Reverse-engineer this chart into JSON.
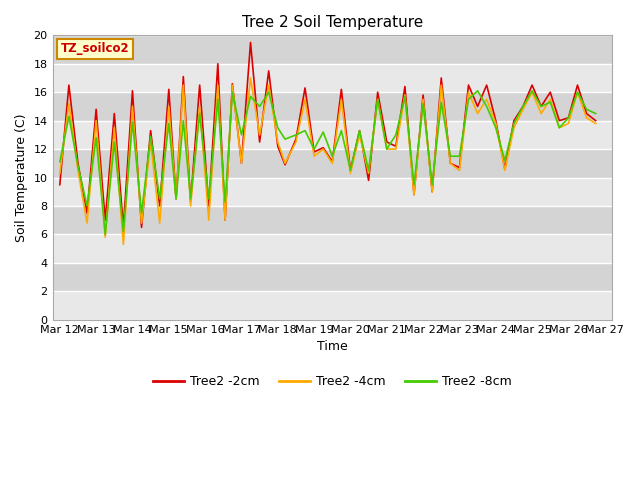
{
  "title": "Tree 2 Soil Temperature",
  "xlabel": "Time",
  "ylabel": "Soil Temperature (C)",
  "legend_label": "TZ_soilco2",
  "ylim": [
    0,
    20
  ],
  "yticks": [
    0,
    2,
    4,
    6,
    8,
    10,
    12,
    14,
    16,
    18,
    20
  ],
  "band_colors": [
    "#e8e8e8",
    "#d8d8d8"
  ],
  "series": {
    "Tree2 -2cm": {
      "color": "#dd0000",
      "x": [
        0,
        0.25,
        0.5,
        0.75,
        1.0,
        1.25,
        1.5,
        1.75,
        2.0,
        2.25,
        2.5,
        2.75,
        3.0,
        3.2,
        3.4,
        3.6,
        3.85,
        4.1,
        4.35,
        4.55,
        4.75,
        5.0,
        5.25,
        5.5,
        5.75,
        6.0,
        6.2,
        6.5,
        6.75,
        7.0,
        7.25,
        7.5,
        7.75,
        8.0,
        8.25,
        8.5,
        8.75,
        9.0,
        9.25,
        9.5,
        9.75,
        10.0,
        10.25,
        10.5,
        10.75,
        11.0,
        11.25,
        11.5,
        11.75,
        12.0,
        12.25,
        12.5,
        12.75,
        13.0,
        13.25,
        13.5,
        13.75,
        14.0,
        14.25,
        14.5,
        14.75
      ],
      "y": [
        9.5,
        16.5,
        11.0,
        7.5,
        14.8,
        7.0,
        14.5,
        6.5,
        16.1,
        6.5,
        13.3,
        8.0,
        16.2,
        8.5,
        17.1,
        8.3,
        16.5,
        8.0,
        18.0,
        7.0,
        16.6,
        11.0,
        19.5,
        12.5,
        17.5,
        12.2,
        10.9,
        12.7,
        16.3,
        11.8,
        12.1,
        11.1,
        16.2,
        10.5,
        13.3,
        9.8,
        16.0,
        12.5,
        12.2,
        16.4,
        8.8,
        15.8,
        9.0,
        17.0,
        11.0,
        10.7,
        16.5,
        15.0,
        16.5,
        14.0,
        10.6,
        14.0,
        15.0,
        16.5,
        15.0,
        16.0,
        14.0,
        14.2,
        16.5,
        14.5,
        14.0
      ]
    },
    "Tree2 -4cm": {
      "color": "#ffaa00",
      "x": [
        0,
        0.25,
        0.5,
        0.75,
        1.0,
        1.25,
        1.5,
        1.75,
        2.0,
        2.25,
        2.5,
        2.75,
        3.0,
        3.2,
        3.4,
        3.6,
        3.85,
        4.1,
        4.35,
        4.55,
        4.75,
        5.0,
        5.25,
        5.5,
        5.75,
        6.0,
        6.2,
        6.5,
        6.75,
        7.0,
        7.25,
        7.5,
        7.75,
        8.0,
        8.25,
        8.5,
        8.75,
        9.0,
        9.25,
        9.5,
        9.75,
        10.0,
        10.25,
        10.5,
        10.75,
        11.0,
        11.25,
        11.5,
        11.75,
        12.0,
        12.25,
        12.5,
        12.75,
        13.0,
        13.25,
        13.5,
        13.75,
        14.0,
        14.25,
        14.5,
        14.75
      ],
      "y": [
        10.3,
        15.2,
        10.5,
        6.8,
        14.0,
        5.8,
        13.5,
        5.3,
        15.0,
        6.8,
        12.5,
        6.8,
        15.0,
        8.5,
        16.5,
        8.0,
        15.0,
        7.0,
        16.5,
        7.0,
        16.5,
        11.0,
        17.0,
        13.0,
        16.5,
        12.5,
        11.0,
        12.5,
        15.5,
        11.5,
        12.0,
        11.0,
        15.5,
        10.3,
        13.0,
        10.3,
        15.5,
        12.0,
        12.0,
        15.8,
        8.8,
        15.5,
        9.0,
        16.5,
        11.0,
        10.5,
        16.0,
        14.5,
        15.5,
        13.8,
        10.5,
        13.5,
        14.8,
        16.0,
        14.5,
        15.5,
        13.5,
        13.8,
        16.0,
        14.2,
        13.8
      ]
    },
    "Tree2 -8cm": {
      "color": "#44cc00",
      "x": [
        0,
        0.25,
        0.5,
        0.75,
        1.0,
        1.25,
        1.5,
        1.75,
        2.0,
        2.25,
        2.5,
        2.75,
        3.0,
        3.2,
        3.4,
        3.6,
        3.85,
        4.1,
        4.35,
        4.55,
        4.75,
        5.0,
        5.25,
        5.5,
        5.75,
        6.0,
        6.2,
        6.5,
        6.75,
        7.0,
        7.25,
        7.5,
        7.75,
        8.0,
        8.25,
        8.5,
        8.75,
        9.0,
        9.25,
        9.5,
        9.75,
        10.0,
        10.25,
        10.5,
        10.75,
        11.0,
        11.25,
        11.5,
        11.75,
        12.0,
        12.25,
        12.5,
        12.75,
        13.0,
        13.25,
        13.5,
        13.75,
        14.0,
        14.25,
        14.5,
        14.75
      ],
      "y": [
        11.1,
        14.3,
        10.8,
        8.0,
        12.8,
        6.0,
        12.5,
        6.2,
        13.9,
        7.5,
        12.9,
        8.5,
        13.8,
        8.5,
        14.0,
        8.5,
        14.5,
        8.5,
        15.5,
        8.3,
        16.0,
        13.0,
        15.7,
        15.0,
        16.0,
        13.5,
        12.7,
        13.0,
        13.3,
        12.0,
        13.2,
        11.5,
        13.3,
        10.5,
        13.3,
        10.5,
        15.5,
        12.0,
        13.0,
        15.7,
        9.5,
        15.2,
        9.5,
        15.3,
        11.5,
        11.5,
        15.5,
        16.1,
        15.0,
        13.5,
        11.2,
        13.8,
        15.0,
        16.1,
        15.0,
        15.3,
        13.5,
        14.2,
        16.0,
        14.8,
        14.5
      ]
    }
  },
  "xlim_labels": [
    "Mar 12",
    "Mar 13",
    "Mar 14",
    "Mar 15",
    "Mar 16",
    "Mar 17",
    "Mar 18",
    "Mar 19",
    "Mar 20",
    "Mar 21",
    "Mar 22",
    "Mar 23",
    "Mar 24",
    "Mar 25",
    "Mar 26",
    "Mar 27"
  ],
  "series_names": [
    "Tree2 -2cm",
    "Tree2 -4cm",
    "Tree2 -8cm"
  ],
  "series_colors": [
    "#dd0000",
    "#ffaa00",
    "#44cc00"
  ]
}
